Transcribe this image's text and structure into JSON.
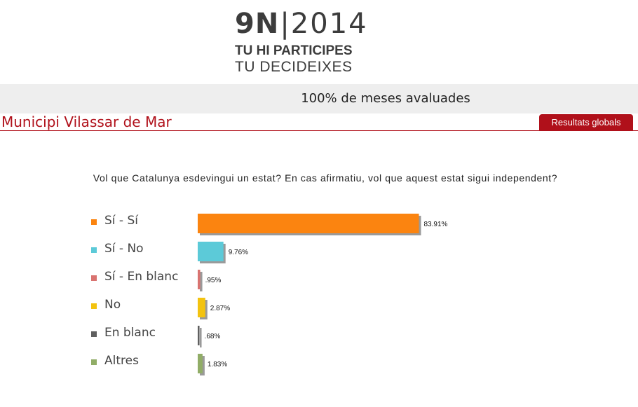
{
  "logo": {
    "mark": "9N",
    "separator": "|",
    "year": "2014",
    "line1": "TU HI PARTICIPES",
    "line2": "TU DECIDEIXES"
  },
  "status": {
    "text": "100% de meses avaluades"
  },
  "header": {
    "municipi": "Municipi Vilassar de Mar",
    "global_button": "Resultats globals"
  },
  "chart_data": {
    "type": "bar",
    "orientation": "horizontal",
    "title": "Vol que Catalunya esdevingui un estat? En cas afirmatiu, vol que aquest estat sigui independent?",
    "categories": [
      "Sí - Sí",
      "Sí - No",
      "Sí - En blanc",
      "No",
      "En blanc",
      "Altres"
    ],
    "values": [
      83.91,
      9.76,
      0.95,
      2.87,
      0.68,
      1.83
    ],
    "value_labels": [
      "83.91%",
      "9.76%",
      ".95%",
      "2.87%",
      ".68%",
      "1.83%"
    ],
    "colors": [
      "#fb8410",
      "#5ccad8",
      "#d97370",
      "#f3c310",
      "#5f5f5f",
      "#91ad67"
    ],
    "legend": "left",
    "xlim": [
      0,
      100
    ],
    "grid": false
  }
}
